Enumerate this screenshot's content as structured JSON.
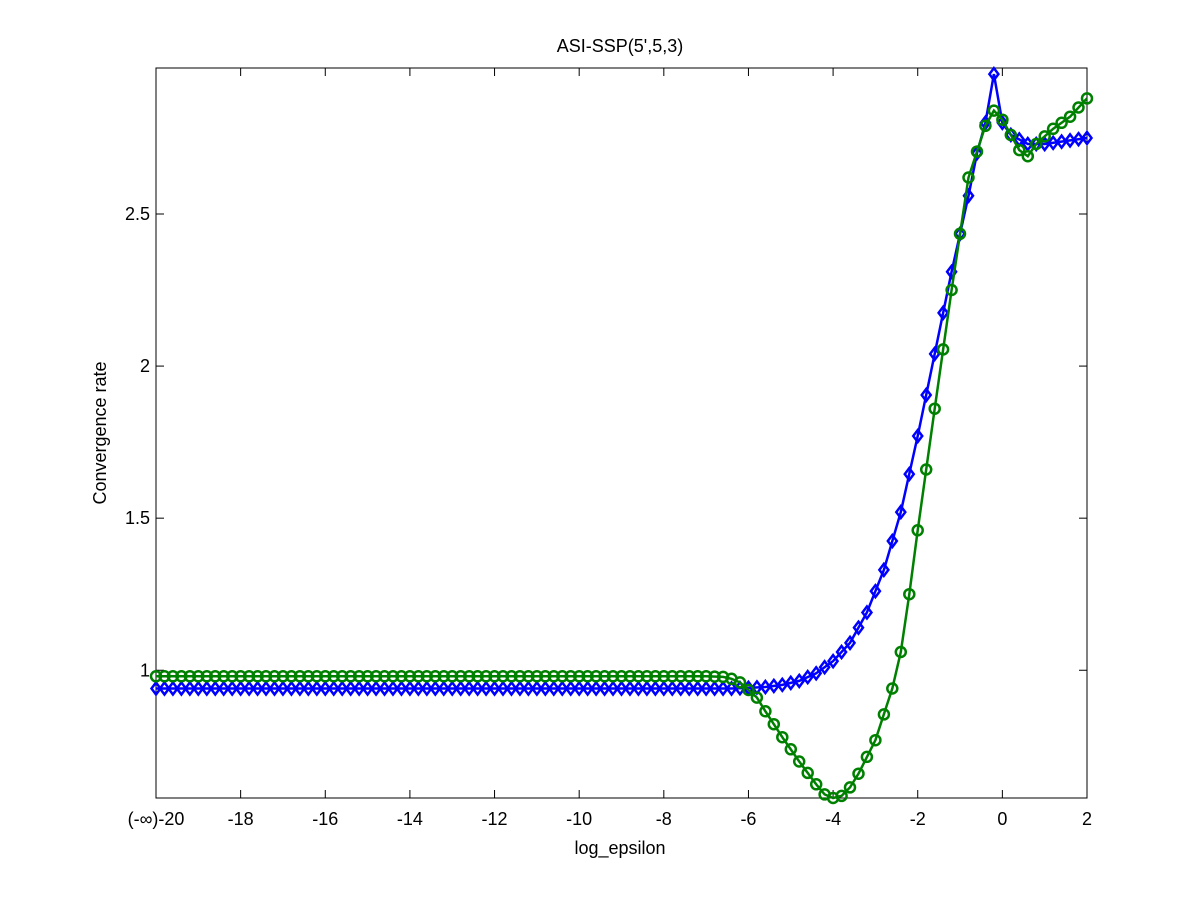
{
  "chart_data": {
    "type": "line",
    "title": "ASI-SSP(5',5,3)",
    "xlabel": "log_epsilon",
    "ylabel": "Convergence rate",
    "xlim": [
      -20,
      2
    ],
    "ylim": [
      0.58,
      2.98
    ],
    "grid": false,
    "legend": "none",
    "x_ticks": [
      {
        "value": -20,
        "label": "(-∞)-20"
      },
      {
        "value": -18,
        "label": "-18"
      },
      {
        "value": -16,
        "label": "-16"
      },
      {
        "value": -14,
        "label": "-14"
      },
      {
        "value": -12,
        "label": "-12"
      },
      {
        "value": -10,
        "label": "-10"
      },
      {
        "value": -8,
        "label": "-8"
      },
      {
        "value": -6,
        "label": "-6"
      },
      {
        "value": -4,
        "label": "-4"
      },
      {
        "value": -2,
        "label": "-2"
      },
      {
        "value": 0,
        "label": "0"
      },
      {
        "value": 2,
        "label": "2"
      }
    ],
    "y_ticks": [
      {
        "value": 1,
        "label": "1"
      },
      {
        "value": 1.5,
        "label": "1.5"
      },
      {
        "value": 2,
        "label": "2"
      },
      {
        "value": 2.5,
        "label": "2.5"
      }
    ],
    "series": [
      {
        "color": "#0000ff",
        "marker": "diamond",
        "points": [
          [
            -20,
            0.94
          ],
          [
            -6.4,
            0.94
          ],
          [
            -6.0,
            0.942
          ],
          [
            -5.6,
            0.945
          ],
          [
            -5.2,
            0.952
          ],
          [
            -4.8,
            0.965
          ],
          [
            -4.4,
            0.99
          ],
          [
            -4.0,
            1.03
          ],
          [
            -3.6,
            1.09
          ],
          [
            -3.2,
            1.19
          ],
          [
            -2.8,
            1.33
          ],
          [
            -2.4,
            1.52
          ],
          [
            -2.0,
            1.77
          ],
          [
            -1.6,
            2.04
          ],
          [
            -1.2,
            2.31
          ],
          [
            -0.8,
            2.56
          ],
          [
            -0.6,
            2.7
          ],
          [
            -0.4,
            2.8
          ],
          [
            -0.2,
            2.96
          ],
          [
            0.0,
            2.8
          ],
          [
            0.2,
            2.76
          ],
          [
            0.6,
            2.73
          ],
          [
            1.0,
            2.73
          ],
          [
            1.5,
            2.74
          ],
          [
            2.0,
            2.75
          ]
        ]
      },
      {
        "color": "#008000",
        "marker": "circle",
        "points": [
          [
            -20,
            0.98
          ],
          [
            -7.0,
            0.98
          ],
          [
            -6.6,
            0.978
          ],
          [
            -6.4,
            0.972
          ],
          [
            -6.2,
            0.96
          ],
          [
            -6.0,
            0.935
          ],
          [
            -5.8,
            0.91
          ],
          [
            -5.6,
            0.865
          ],
          [
            -5.2,
            0.78
          ],
          [
            -4.8,
            0.7
          ],
          [
            -4.4,
            0.625
          ],
          [
            -4.2,
            0.592
          ],
          [
            -4.0,
            0.58
          ],
          [
            -3.8,
            0.587
          ],
          [
            -3.6,
            0.615
          ],
          [
            -3.4,
            0.66
          ],
          [
            -3.0,
            0.77
          ],
          [
            -2.6,
            0.94
          ],
          [
            -2.4,
            1.06
          ],
          [
            -2.2,
            1.25
          ],
          [
            -2.0,
            1.46
          ],
          [
            -1.6,
            1.86
          ],
          [
            -1.2,
            2.25
          ],
          [
            -0.8,
            2.62
          ],
          [
            -0.4,
            2.79
          ],
          [
            -0.2,
            2.84
          ],
          [
            0.0,
            2.81
          ],
          [
            0.4,
            2.71
          ],
          [
            0.6,
            2.69
          ],
          [
            0.8,
            2.73
          ],
          [
            1.2,
            2.78
          ],
          [
            1.6,
            2.82
          ],
          [
            2.0,
            2.88
          ]
        ]
      }
    ]
  }
}
